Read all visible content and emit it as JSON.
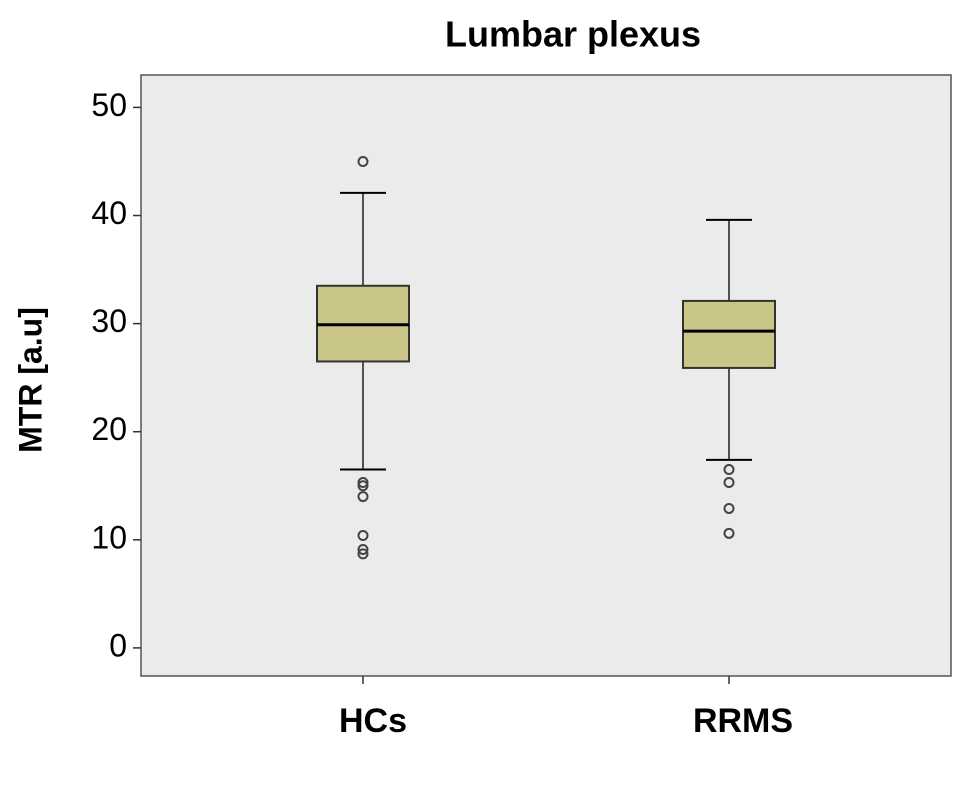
{
  "chart_data": {
    "type": "box",
    "title": "Lumbar plexus",
    "y_label": "MTR [a.u]",
    "categories": [
      "HCs",
      "RRMS"
    ],
    "color": "#c9c688",
    "boxes": [
      {
        "whisker_low": 16.5,
        "q1": 26.5,
        "median": 29.9,
        "q3": 33.5,
        "whisker_high": 42.1,
        "outliers": [
          45.0,
          15.3,
          15.0,
          14.0,
          10.4,
          9.1,
          8.7
        ]
      },
      {
        "whisker_low": 17.4,
        "q1": 25.9,
        "median": 29.3,
        "q3": 32.1,
        "whisker_high": 39.6,
        "outliers": [
          16.5,
          15.3,
          12.9,
          10.6
        ]
      }
    ],
    "ylim": [
      -2.6,
      53
    ],
    "yticks": [
      0,
      10,
      20,
      30,
      40,
      50
    ],
    "grid": false
  }
}
